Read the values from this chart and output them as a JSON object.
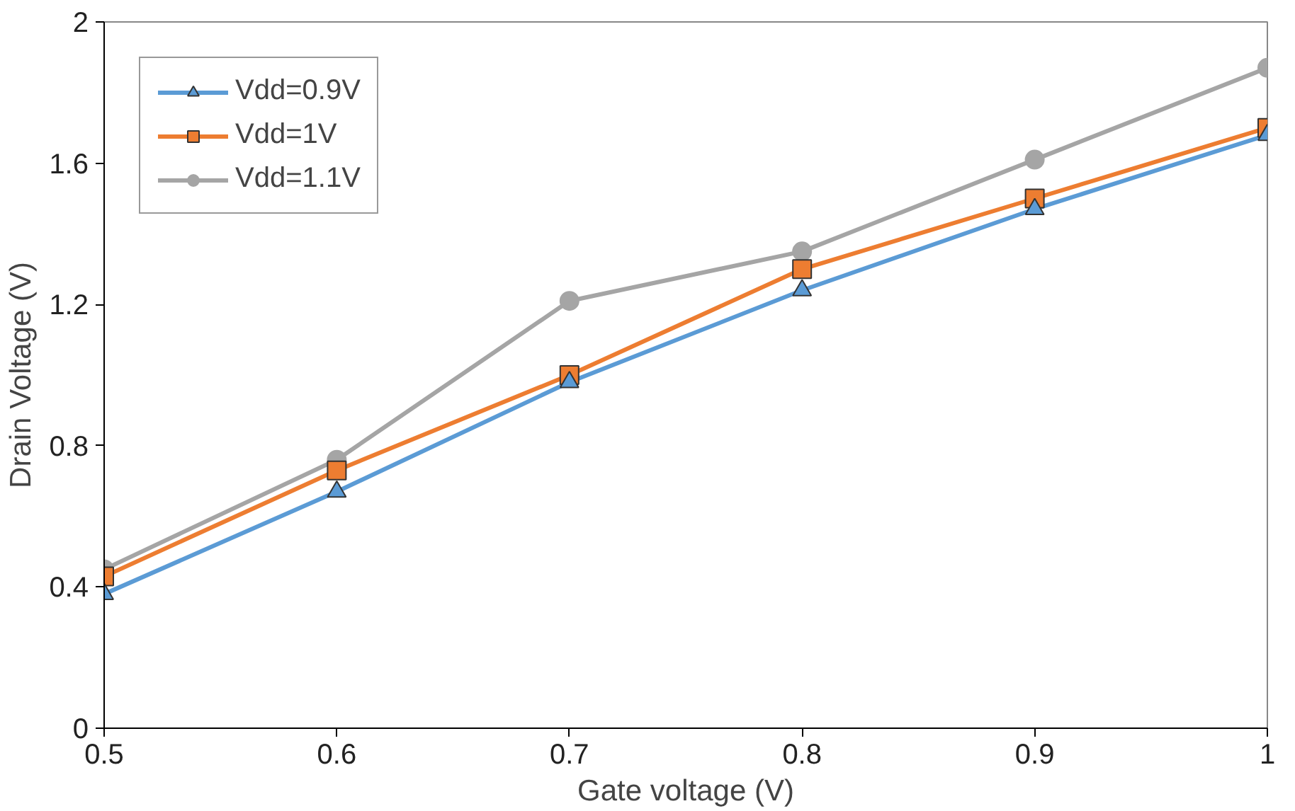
{
  "chart_data": {
    "type": "line",
    "xlabel": "Gate voltage (V)",
    "ylabel": "Drain Voltage (V)",
    "x": [
      0.5,
      0.6,
      0.7,
      0.8,
      0.9,
      1
    ],
    "xlim": [
      0.5,
      1
    ],
    "xticks": [
      0.5,
      0.6,
      0.7,
      0.8,
      0.9,
      1
    ],
    "ylim": [
      0,
      2
    ],
    "yticks": [
      0,
      0.4,
      0.8,
      1.2,
      1.6,
      2
    ],
    "grid": false,
    "legend": "top left",
    "line_style": "solid",
    "series": [
      {
        "name": "Vdd=0.9V",
        "color": "#5b9bd5",
        "marker": "triangle",
        "values": [
          0.38,
          0.67,
          0.98,
          1.24,
          1.47,
          1.68
        ]
      },
      {
        "name": "Vdd=1V",
        "color": "#ed7d31",
        "marker": "square",
        "values": [
          0.43,
          0.73,
          1.0,
          1.3,
          1.5,
          1.7
        ]
      },
      {
        "name": "Vdd=1.1V",
        "color": "#a5a5a5",
        "marker": "circle",
        "values": [
          0.45,
          0.76,
          1.21,
          1.35,
          1.61,
          1.87
        ]
      }
    ]
  }
}
